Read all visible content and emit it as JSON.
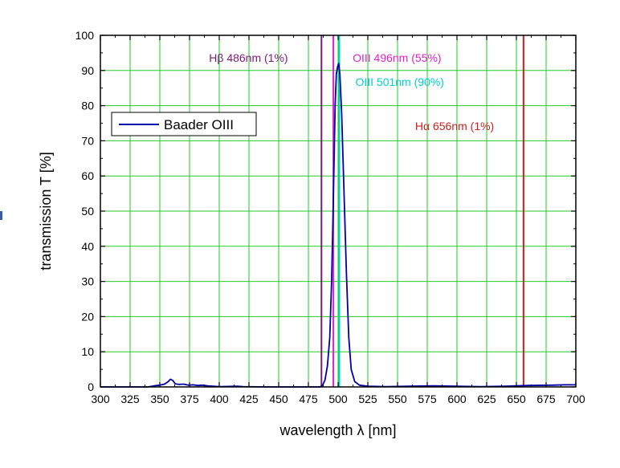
{
  "chart_data": {
    "type": "line",
    "xlabel": "wavelength λ [nm]",
    "ylabel": "transmission T [%]",
    "xlim": [
      300,
      700
    ],
    "ylim": [
      0,
      100
    ],
    "x_ticks": [
      300,
      325,
      350,
      375,
      400,
      425,
      450,
      475,
      500,
      525,
      550,
      575,
      600,
      625,
      650,
      675,
      700
    ],
    "y_ticks": [
      0,
      10,
      20,
      30,
      40,
      50,
      60,
      70,
      80,
      90,
      100
    ],
    "grid": true,
    "grid_color": "#22cc22",
    "legend": {
      "placement": "top-left",
      "entries": [
        "Baader OIII"
      ]
    },
    "series": [
      {
        "name": "Baader OIII",
        "color": "#0000aa",
        "points": [
          [
            300,
            0
          ],
          [
            340,
            0
          ],
          [
            345,
            0.3
          ],
          [
            350,
            0.5
          ],
          [
            354,
            0.8
          ],
          [
            357,
            1.5
          ],
          [
            359,
            2.2
          ],
          [
            361,
            1.8
          ],
          [
            363,
            0.9
          ],
          [
            366,
            0.7
          ],
          [
            370,
            0.8
          ],
          [
            374,
            0.5
          ],
          [
            378,
            0.6
          ],
          [
            382,
            0.4
          ],
          [
            386,
            0.5
          ],
          [
            390,
            0.3
          ],
          [
            395,
            0.2
          ],
          [
            400,
            0.1
          ],
          [
            415,
            0.2
          ],
          [
            420,
            0.1
          ],
          [
            440,
            0
          ],
          [
            485,
            0
          ],
          [
            487,
            0.5
          ],
          [
            489,
            2
          ],
          [
            491,
            6
          ],
          [
            493,
            14
          ],
          [
            494.5,
            30
          ],
          [
            495.5,
            45
          ],
          [
            496.5,
            62
          ],
          [
            497.5,
            80
          ],
          [
            498.5,
            89
          ],
          [
            499.5,
            91
          ],
          [
            500.5,
            92
          ],
          [
            501.5,
            89
          ],
          [
            503,
            78
          ],
          [
            505,
            55
          ],
          [
            507,
            32
          ],
          [
            509,
            14
          ],
          [
            511,
            5
          ],
          [
            514,
            1.5
          ],
          [
            518,
            0.5
          ],
          [
            525,
            0.2
          ],
          [
            540,
            0.1
          ],
          [
            560,
            0.2
          ],
          [
            580,
            0.3
          ],
          [
            600,
            0.2
          ],
          [
            620,
            0.1
          ],
          [
            640,
            0.2
          ],
          [
            660,
            0.4
          ],
          [
            680,
            0.5
          ],
          [
            690,
            0.6
          ],
          [
            700,
            0.6
          ]
        ]
      }
    ],
    "reference_lines": [
      {
        "x": 486,
        "label": "Hβ 486nm  (1%)",
        "color": "#7a1a7a"
      },
      {
        "x": 496,
        "label": "OIII 496nm (55%)",
        "color": "#e020c8"
      },
      {
        "x": 501,
        "label": "OIII 501nm (90%)",
        "color": "#00d0d0"
      },
      {
        "x": 656,
        "label": "Hα 656nm  (1%)",
        "color": "#cc2020"
      }
    ]
  }
}
